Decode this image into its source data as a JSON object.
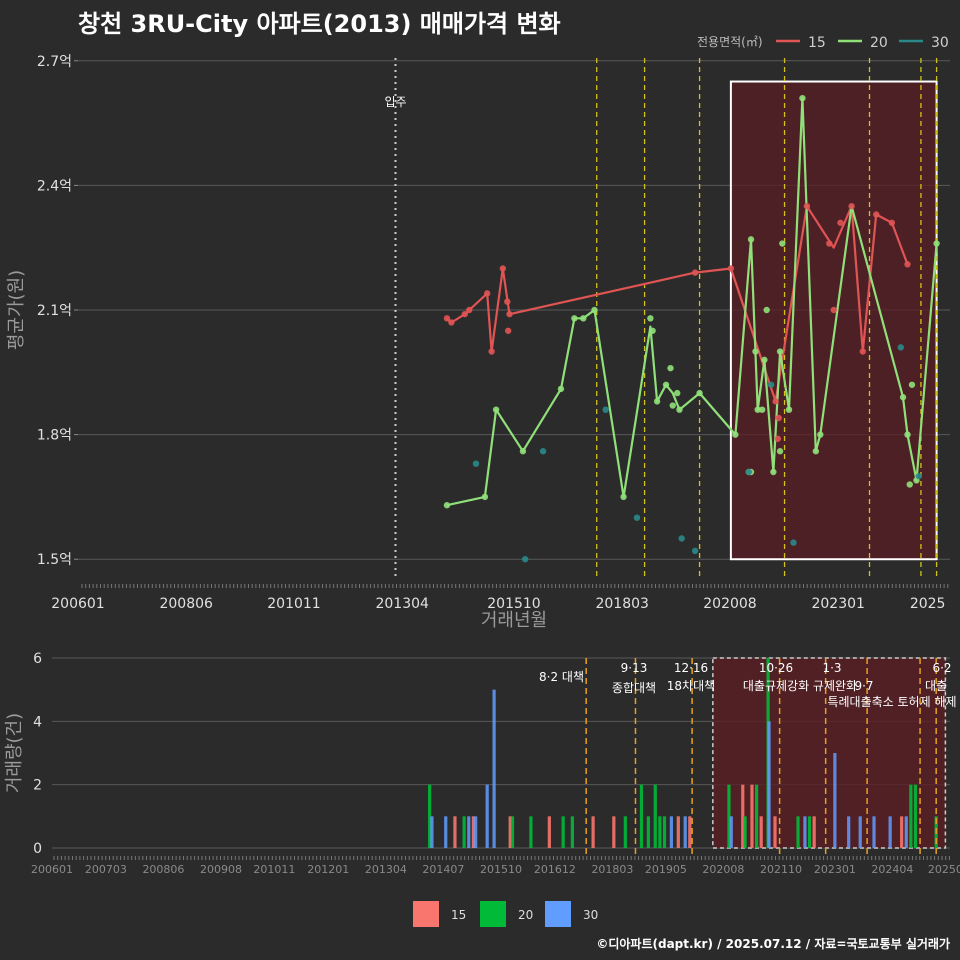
{
  "title": "창천 3RU-City 아파트(2013) 매매가격 변화",
  "footer": "©디아파트(dapt.kr) / 2025.07.12 / 자료=국토교통부 실거래가",
  "colors": {
    "bg": "#2b2b2b",
    "grid": "#595959",
    "s15": "#e05454",
    "s20": "#90e07a",
    "s30": "#2a8a8a",
    "bar15": "#f8766d",
    "bar20": "#00ba38",
    "bar30": "#619cff",
    "vline": "#d4c21a",
    "bvline": "#e8a020",
    "shade": "#5a1e24"
  },
  "chart_data": [
    {
      "type": "line",
      "name": "price",
      "xlabel": "거래년월",
      "ylabel": "평균가(원)",
      "ylim": [
        1.45,
        2.75
      ],
      "xlim": [
        2006.0,
        2025.5
      ],
      "yticks": [
        {
          "v": 1.5,
          "label": "1.5억"
        },
        {
          "v": 1.8,
          "label": "1.8억"
        },
        {
          "v": 2.1,
          "label": "2.1억"
        },
        {
          "v": 2.4,
          "label": "2.4억"
        },
        {
          "v": 2.7,
          "label": "2.7억"
        }
      ],
      "xticks": [
        {
          "v": 2006.0,
          "label": "200601"
        },
        {
          "v": 2008.42,
          "label": "200806"
        },
        {
          "v": 2010.83,
          "label": "201011"
        },
        {
          "v": 2013.25,
          "label": "201304"
        },
        {
          "v": 2015.75,
          "label": "201510"
        },
        {
          "v": 2018.17,
          "label": "201803"
        },
        {
          "v": 2020.58,
          "label": "202008"
        },
        {
          "v": 2023.0,
          "label": "202301"
        },
        {
          "v": 2025.0,
          "label": "2025"
        }
      ],
      "legend_title": "전용면적(㎡)",
      "legend": [
        "15",
        "20",
        "30"
      ],
      "move_in": {
        "x": 2013.1,
        "label": "입주"
      },
      "vlines": [
        2017.6,
        2018.67,
        2019.9,
        2021.8,
        2023.7,
        2024.85,
        2025.2
      ],
      "highlight": {
        "x0": 2020.6,
        "x1": 2025.2,
        "y0": 1.5,
        "y1": 2.65
      },
      "series": [
        {
          "name": "15",
          "points": [
            [
              2014.25,
              2.08
            ],
            [
              2014.35,
              2.07
            ],
            [
              2014.65,
              2.09
            ],
            [
              2014.75,
              2.1
            ],
            [
              2015.15,
              2.14
            ],
            [
              2015.25,
              2.0
            ],
            [
              2015.5,
              2.2
            ],
            [
              2015.6,
              2.12
            ],
            [
              2015.62,
              2.05
            ],
            [
              2015.65,
              2.09
            ],
            [
              2019.8,
              2.19
            ],
            [
              2020.6,
              2.2
            ],
            [
              2021.6,
              1.88
            ],
            [
              2021.65,
              1.79
            ],
            [
              2021.67,
              1.84
            ],
            [
              2022.3,
              2.35
            ],
            [
              2022.8,
              2.26
            ],
            [
              2022.9,
              2.1
            ],
            [
              2023.05,
              2.31
            ],
            [
              2023.3,
              2.35
            ],
            [
              2023.55,
              2.0
            ],
            [
              2023.85,
              2.33
            ],
            [
              2024.2,
              2.31
            ],
            [
              2024.55,
              2.21
            ]
          ],
          "line": [
            [
              2014.25,
              2.08
            ],
            [
              2014.35,
              2.07
            ],
            [
              2014.65,
              2.09
            ],
            [
              2014.75,
              2.1
            ],
            [
              2015.15,
              2.14
            ],
            [
              2015.25,
              2.0
            ],
            [
              2015.5,
              2.2
            ],
            [
              2015.65,
              2.09
            ],
            [
              2019.8,
              2.19
            ],
            [
              2020.6,
              2.2
            ],
            [
              2021.6,
              1.88
            ],
            [
              2022.3,
              2.35
            ],
            [
              2022.9,
              2.25
            ],
            [
              2023.3,
              2.35
            ],
            [
              2023.55,
              2.0
            ],
            [
              2023.85,
              2.33
            ],
            [
              2024.2,
              2.31
            ],
            [
              2024.55,
              2.21
            ]
          ]
        },
        {
          "name": "20",
          "points": [
            [
              2014.25,
              1.63
            ],
            [
              2015.1,
              1.65
            ],
            [
              2015.35,
              1.86
            ],
            [
              2015.95,
              1.76
            ],
            [
              2016.8,
              1.91
            ],
            [
              2017.1,
              2.08
            ],
            [
              2017.3,
              2.08
            ],
            [
              2017.55,
              2.1
            ],
            [
              2018.2,
              1.65
            ],
            [
              2018.8,
              2.08
            ],
            [
              2018.85,
              2.05
            ],
            [
              2018.95,
              1.88
            ],
            [
              2019.15,
              1.92
            ],
            [
              2019.25,
              1.96
            ],
            [
              2019.3,
              1.87
            ],
            [
              2019.4,
              1.9
            ],
            [
              2019.45,
              1.86
            ],
            [
              2019.9,
              1.9
            ],
            [
              2020.7,
              1.8
            ],
            [
              2021.0,
              1.71
            ],
            [
              2021.05,
              1.71
            ],
            [
              2021.05,
              2.27
            ],
            [
              2021.15,
              2.0
            ],
            [
              2021.2,
              1.86
            ],
            [
              2021.3,
              1.86
            ],
            [
              2021.35,
              1.98
            ],
            [
              2021.4,
              2.1
            ],
            [
              2021.55,
              1.71
            ],
            [
              2021.7,
              1.76
            ],
            [
              2021.7,
              2.0
            ],
            [
              2021.75,
              2.26
            ],
            [
              2021.9,
              1.86
            ],
            [
              2022.2,
              2.61
            ],
            [
              2022.5,
              1.76
            ],
            [
              2022.6,
              1.8
            ],
            [
              2024.45,
              1.89
            ],
            [
              2024.55,
              1.8
            ],
            [
              2024.6,
              1.68
            ],
            [
              2024.65,
              1.92
            ],
            [
              2024.75,
              1.69
            ],
            [
              2025.2,
              2.26
            ]
          ],
          "line": [
            [
              2014.25,
              1.63
            ],
            [
              2015.1,
              1.65
            ],
            [
              2015.35,
              1.86
            ],
            [
              2015.95,
              1.76
            ],
            [
              2016.8,
              1.91
            ],
            [
              2017.1,
              2.08
            ],
            [
              2017.3,
              2.08
            ],
            [
              2017.55,
              2.1
            ],
            [
              2018.2,
              1.65
            ],
            [
              2018.8,
              2.06
            ],
            [
              2018.95,
              1.88
            ],
            [
              2019.15,
              1.92
            ],
            [
              2019.3,
              1.9
            ],
            [
              2019.45,
              1.86
            ],
            [
              2019.9,
              1.9
            ],
            [
              2020.7,
              1.8
            ],
            [
              2021.05,
              2.27
            ],
            [
              2021.2,
              1.86
            ],
            [
              2021.35,
              1.98
            ],
            [
              2021.55,
              1.71
            ],
            [
              2021.7,
              2.0
            ],
            [
              2021.9,
              1.86
            ],
            [
              2022.2,
              2.61
            ],
            [
              2022.5,
              1.76
            ],
            [
              2022.6,
              1.8
            ],
            [
              2023.3,
              2.35
            ],
            [
              2024.45,
              1.89
            ],
            [
              2024.55,
              1.8
            ],
            [
              2024.75,
              1.69
            ],
            [
              2025.2,
              2.26
            ]
          ]
        },
        {
          "name": "30",
          "points": [
            [
              2014.9,
              1.73
            ],
            [
              2016.0,
              1.5
            ],
            [
              2016.4,
              1.76
            ],
            [
              2017.8,
              1.86
            ],
            [
              2018.5,
              1.6
            ],
            [
              2019.5,
              1.55
            ],
            [
              2019.8,
              1.52
            ],
            [
              2021.0,
              1.71
            ],
            [
              2021.5,
              1.92
            ],
            [
              2022.0,
              1.54
            ],
            [
              2024.4,
              2.01
            ],
            [
              2024.8,
              1.7
            ]
          ],
          "line": []
        }
      ]
    },
    {
      "type": "bar",
      "name": "volume",
      "xlabel": "",
      "ylabel": "거래량(건)",
      "ylim": [
        0,
        6
      ],
      "yticks": [
        0,
        2,
        4,
        6
      ],
      "xlim": [
        2006.0,
        2025.5
      ],
      "xticks": [
        {
          "v": 2006.0,
          "label": "200601"
        },
        {
          "v": 2007.17,
          "label": "200703"
        },
        {
          "v": 2008.42,
          "label": "200806"
        },
        {
          "v": 2009.67,
          "label": "200908"
        },
        {
          "v": 2010.83,
          "label": "201011"
        },
        {
          "v": 2012.0,
          "label": "201201"
        },
        {
          "v": 2013.25,
          "label": "201304"
        },
        {
          "v": 2014.5,
          "label": "201407"
        },
        {
          "v": 2015.75,
          "label": "201510"
        },
        {
          "v": 2016.92,
          "label": "201612"
        },
        {
          "v": 2018.17,
          "label": "201803"
        },
        {
          "v": 2019.33,
          "label": "201905"
        },
        {
          "v": 2020.58,
          "label": "202008"
        },
        {
          "v": 2021.83,
          "label": "202110"
        },
        {
          "v": 2023.0,
          "label": "202301"
        },
        {
          "v": 2024.25,
          "label": "202404"
        },
        {
          "v": 2025.4,
          "label": "20250"
        }
      ],
      "legend": [
        "15",
        "20",
        "30"
      ],
      "vlines": [
        2017.6,
        2018.67,
        2019.9,
        2021.8,
        2022.8,
        2023.7,
        2024.85,
        2025.2
      ],
      "highlight": {
        "x0": 2020.35,
        "x1": 2025.4
      },
      "policy_annotations": [
        {
          "x": 2017.6,
          "date": "8·2 대책",
          "text": ""
        },
        {
          "x": 2018.67,
          "date": "9·13",
          "text": "종합대책"
        },
        {
          "x": 2019.9,
          "date": "12·16",
          "text": "18차대책"
        },
        {
          "x": 2021.8,
          "date": "10·26",
          "text": "대출규제강화"
        },
        {
          "x": 2022.8,
          "date": "1·3",
          "text": "규제완화"
        },
        {
          "x": 2023.7,
          "date": "9·7",
          "text": "특례대출축소 토허제 해제"
        },
        {
          "x": 2025.2,
          "date": "6·2",
          "text": "대출"
        }
      ],
      "bars": [
        {
          "x": 2014.2,
          "s": "20",
          "v": 2
        },
        {
          "x": 2014.25,
          "s": "30",
          "v": 1
        },
        {
          "x": 2014.55,
          "s": "30",
          "v": 1
        },
        {
          "x": 2014.75,
          "s": "15",
          "v": 1
        },
        {
          "x": 2014.95,
          "s": "20",
          "v": 1
        },
        {
          "x": 2015.05,
          "s": "30",
          "v": 1
        },
        {
          "x": 2015.15,
          "s": "15",
          "v": 1
        },
        {
          "x": 2015.2,
          "s": "30",
          "v": 1
        },
        {
          "x": 2015.45,
          "s": "30",
          "v": 2
        },
        {
          "x": 2015.6,
          "s": "30",
          "v": 5
        },
        {
          "x": 2015.95,
          "s": "15",
          "v": 1
        },
        {
          "x": 2016.0,
          "s": "20",
          "v": 1
        },
        {
          "x": 2016.4,
          "s": "20",
          "v": 1
        },
        {
          "x": 2016.8,
          "s": "15",
          "v": 1
        },
        {
          "x": 2017.1,
          "s": "20",
          "v": 1
        },
        {
          "x": 2017.3,
          "s": "20",
          "v": 1
        },
        {
          "x": 2017.75,
          "s": "15",
          "v": 1
        },
        {
          "x": 2018.2,
          "s": "15",
          "v": 1
        },
        {
          "x": 2018.45,
          "s": "20",
          "v": 1
        },
        {
          "x": 2018.8,
          "s": "20",
          "v": 2
        },
        {
          "x": 2018.95,
          "s": "20",
          "v": 1
        },
        {
          "x": 2019.1,
          "s": "20",
          "v": 2
        },
        {
          "x": 2019.2,
          "s": "20",
          "v": 1
        },
        {
          "x": 2019.3,
          "s": "20",
          "v": 1
        },
        {
          "x": 2019.45,
          "s": "30",
          "v": 1
        },
        {
          "x": 2019.6,
          "s": "15",
          "v": 1
        },
        {
          "x": 2019.75,
          "s": "30",
          "v": 1
        },
        {
          "x": 2019.85,
          "s": "15",
          "v": 1
        },
        {
          "x": 2020.7,
          "s": "20",
          "v": 2
        },
        {
          "x": 2020.75,
          "s": "30",
          "v": 1
        },
        {
          "x": 2021.0,
          "s": "15",
          "v": 2
        },
        {
          "x": 2021.05,
          "s": "20",
          "v": 1
        },
        {
          "x": 2021.2,
          "s": "15",
          "v": 2
        },
        {
          "x": 2021.3,
          "s": "20",
          "v": 2
        },
        {
          "x": 2021.4,
          "s": "15",
          "v": 1
        },
        {
          "x": 2021.55,
          "s": "20",
          "v": 6
        },
        {
          "x": 2021.57,
          "s": "30",
          "v": 4
        },
        {
          "x": 2021.7,
          "s": "15",
          "v": 1
        },
        {
          "x": 2022.2,
          "s": "20",
          "v": 1
        },
        {
          "x": 2022.35,
          "s": "30",
          "v": 1
        },
        {
          "x": 2022.45,
          "s": "20",
          "v": 1
        },
        {
          "x": 2022.55,
          "s": "15",
          "v": 1
        },
        {
          "x": 2023.0,
          "s": "30",
          "v": 3
        },
        {
          "x": 2023.3,
          "s": "30",
          "v": 1
        },
        {
          "x": 2023.55,
          "s": "30",
          "v": 1
        },
        {
          "x": 2023.85,
          "s": "30",
          "v": 1
        },
        {
          "x": 2024.2,
          "s": "30",
          "v": 1
        },
        {
          "x": 2024.45,
          "s": "15",
          "v": 1
        },
        {
          "x": 2024.55,
          "s": "30",
          "v": 1
        },
        {
          "x": 2024.65,
          "s": "20",
          "v": 2
        },
        {
          "x": 2024.75,
          "s": "20",
          "v": 2
        },
        {
          "x": 2025.2,
          "s": "20",
          "v": 1
        }
      ]
    }
  ]
}
